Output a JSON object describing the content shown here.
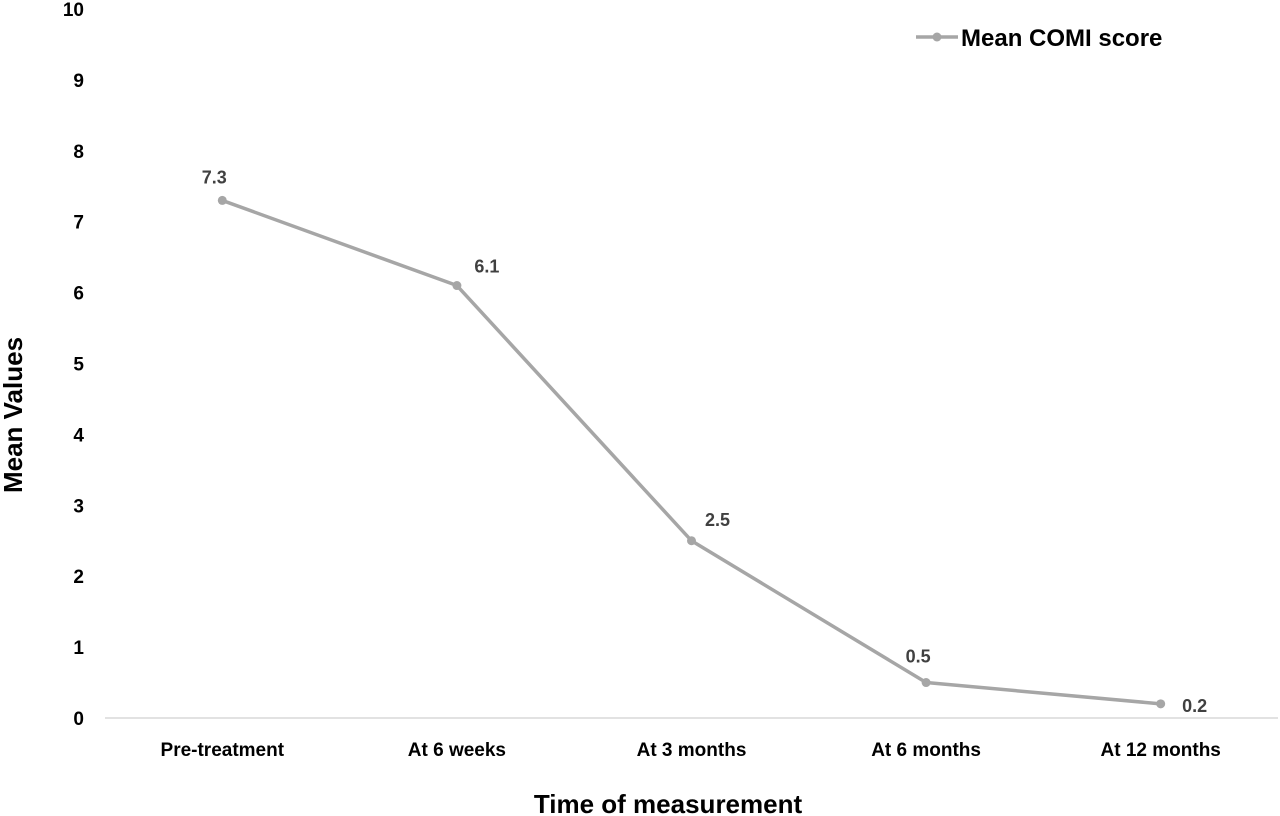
{
  "chart_data": {
    "type": "line",
    "title": "",
    "xlabel": "Time of measurement",
    "ylabel": "Mean Values",
    "categories": [
      "Pre-treatment",
      "At 6 weeks",
      "At 3 months",
      "At 6 months",
      "At 12 months"
    ],
    "ylim": [
      0,
      10
    ],
    "yticks": [
      "0",
      "1",
      "2",
      "3",
      "4",
      "5",
      "6",
      "7",
      "8",
      "9",
      "10"
    ],
    "grid": false,
    "legend_position": "top-right",
    "series": [
      {
        "name": "Mean COMI score",
        "color": "#a6a6a6",
        "values": [
          7.3,
          6.1,
          2.5,
          0.5,
          0.2
        ],
        "labels": [
          "7.3",
          "6.1",
          "2.5",
          "0.5",
          "0.2"
        ]
      }
    ]
  }
}
